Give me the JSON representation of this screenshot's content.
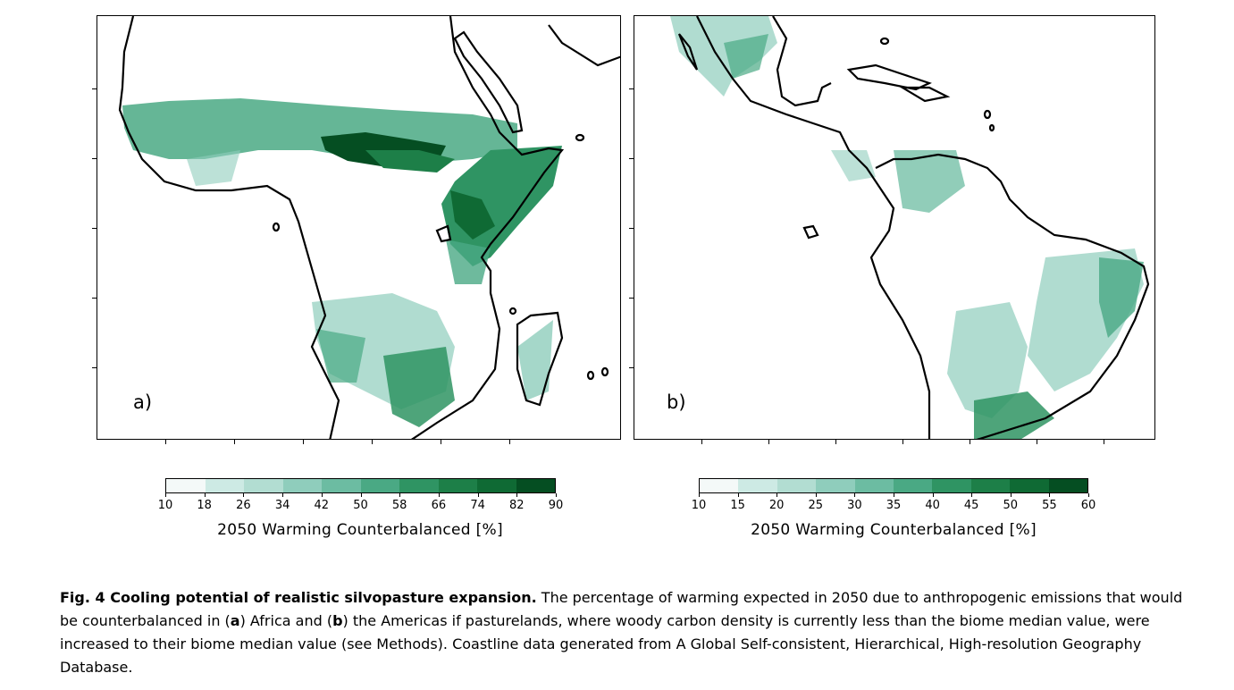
{
  "panels": [
    {
      "label": "a)",
      "region": "Africa",
      "colorbar": {
        "ticks": [
          "10",
          "18",
          "26",
          "34",
          "42",
          "50",
          "58",
          "66",
          "74",
          "82",
          "90"
        ],
        "colors": [
          "#f4f9f8",
          "#e3f2f0",
          "#cdeae4",
          "#b2ddd2",
          "#8fcdbc",
          "#6cbca2",
          "#4aa984",
          "#2f9463",
          "#1d7f48",
          "#0f6a34",
          "#054e22"
        ],
        "label": "2050 Warming Counterbalanced [%]"
      }
    },
    {
      "label": "b)",
      "region": "Americas",
      "colorbar": {
        "ticks": [
          "10",
          "15",
          "20",
          "25",
          "30",
          "35",
          "40",
          "45",
          "50",
          "55",
          "60"
        ],
        "colors": [
          "#f4f9f8",
          "#e3f2f0",
          "#cdeae4",
          "#b2ddd2",
          "#8fcdbc",
          "#6cbca2",
          "#4aa984",
          "#2f9463",
          "#1d7f48",
          "#0f6a34",
          "#054e22"
        ],
        "label": "2050 Warming Counterbalanced [%]"
      }
    }
  ],
  "caption": {
    "title": "Fig. 4 Cooling potential of realistic silvopasture expansion.",
    "part1": " The percentage of warming expected in 2050 due to anthropogenic emissions that would be counterbalanced in (",
    "a": "a",
    "part2": ") Africa and (",
    "b": "b",
    "part3": ") the Americas if pasturelands, where woody carbon density is currently less than the biome median value, were increased to their biome median value (see Methods). Coastline data generated from A Global Self-consistent, Hierarchical, High-resolution Geography Database."
  },
  "colors": {
    "coastline": "#000000",
    "low": "#f4f9f8",
    "high": "#054e22"
  }
}
